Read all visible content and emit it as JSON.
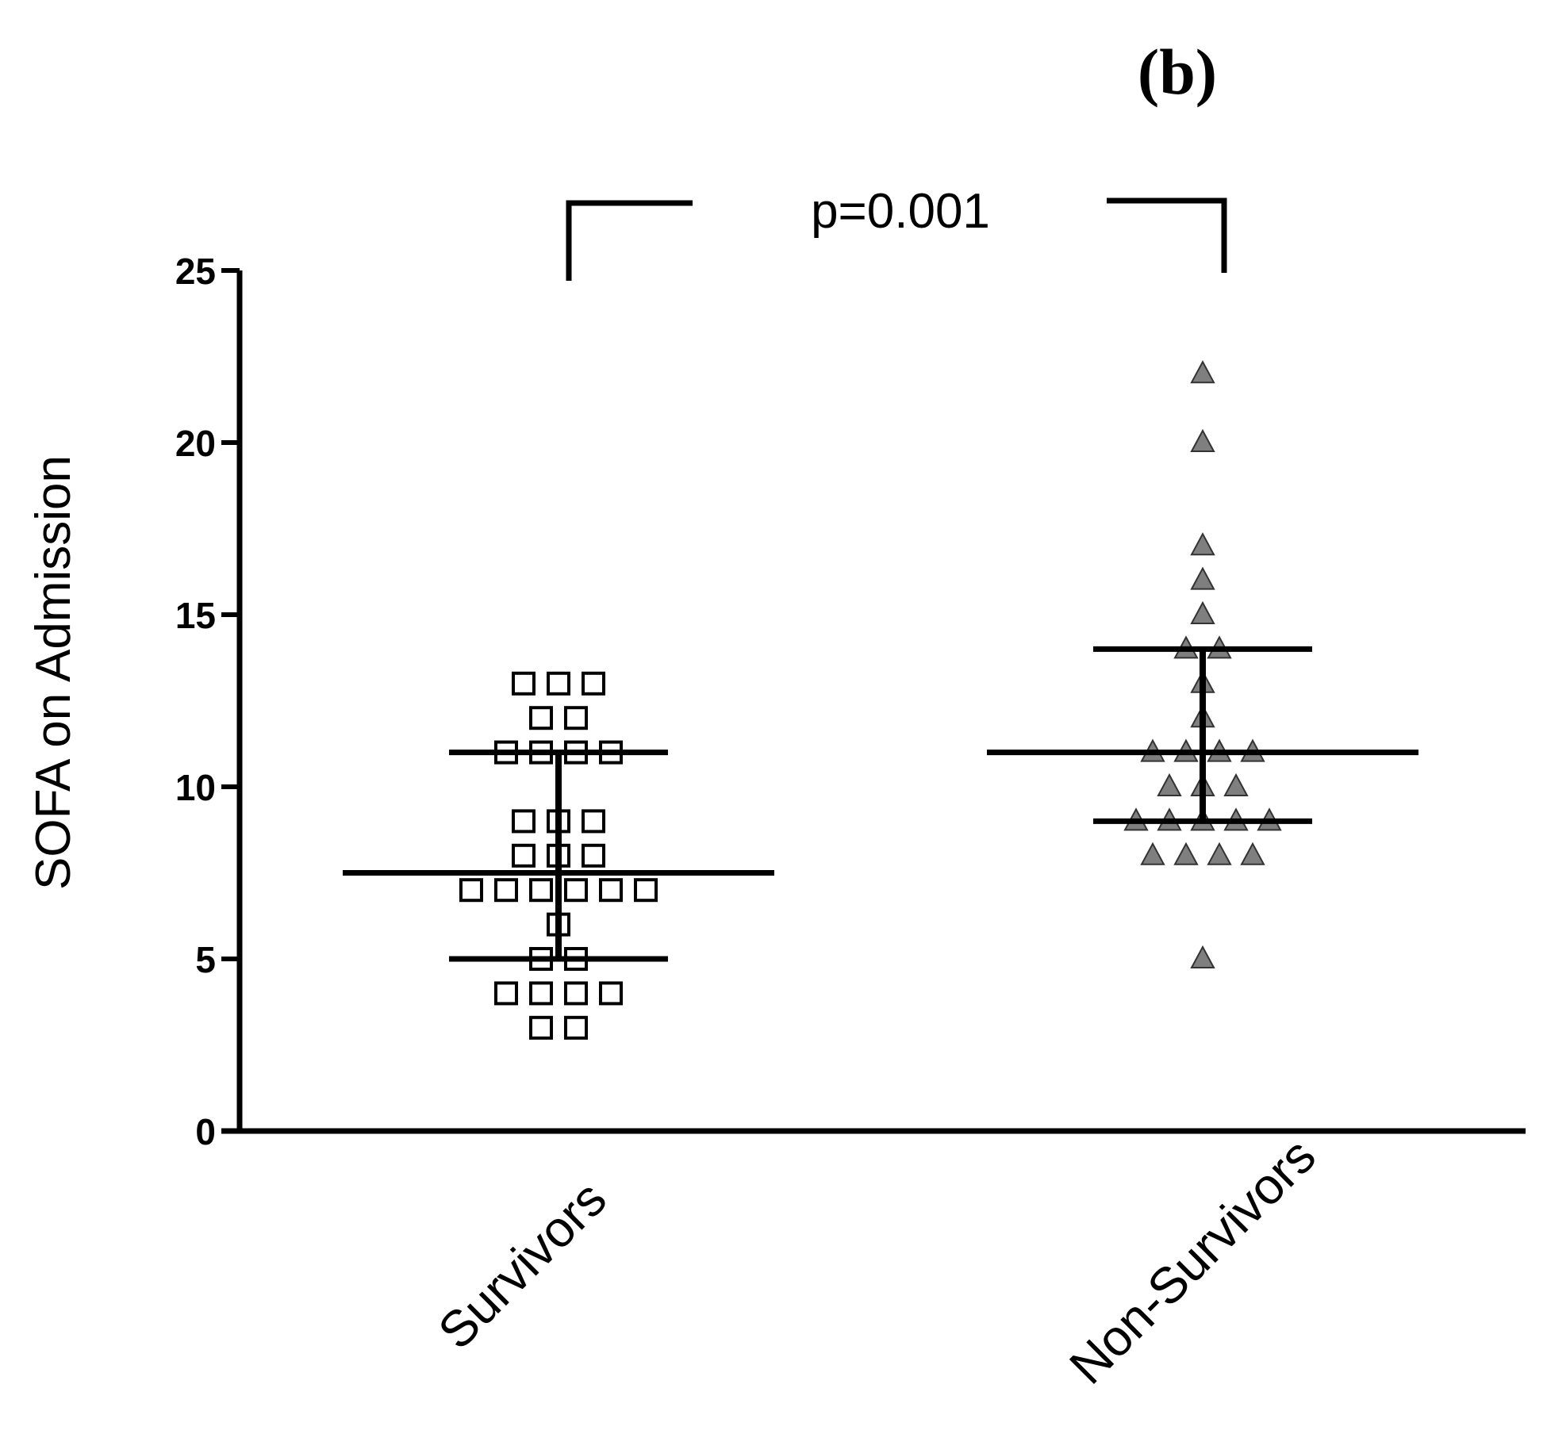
{
  "panel_label": "(b)",
  "annotation": {
    "text": "p=0.001"
  },
  "chart_data": {
    "type": "scatter",
    "subtype": "dot-plot-with-median-and-iqr",
    "title": "",
    "xlabel": "",
    "ylabel": "SOFA on Admission",
    "ylim": [
      0,
      25
    ],
    "yticks": [
      0,
      5,
      10,
      15,
      20,
      25
    ],
    "grid": false,
    "legend": "none",
    "categories": [
      "Survivors",
      "Non-Survivors"
    ],
    "series": [
      {
        "name": "Survivors",
        "marker": "open-square",
        "color": "#000000",
        "median": 7.5,
        "q1": 5,
        "q3": 11,
        "rows": [
          {
            "y": 13,
            "n": 3
          },
          {
            "y": 12,
            "n": 2
          },
          {
            "y": 11,
            "n": 4
          },
          {
            "y": 9,
            "n": 3
          },
          {
            "y": 8,
            "n": 3
          },
          {
            "y": 7,
            "n": 6
          },
          {
            "y": 6,
            "n": 1
          },
          {
            "y": 5,
            "n": 2
          },
          {
            "y": 4,
            "n": 4
          },
          {
            "y": 3,
            "n": 2
          }
        ]
      },
      {
        "name": "Non-Survivors",
        "marker": "filled-triangle",
        "color": "#7f7f7f",
        "median": 11,
        "q1": 9,
        "q3": 14,
        "rows": [
          {
            "y": 22,
            "n": 1
          },
          {
            "y": 20,
            "n": 1
          },
          {
            "y": 17,
            "n": 1
          },
          {
            "y": 16,
            "n": 1
          },
          {
            "y": 15,
            "n": 1
          },
          {
            "y": 14,
            "n": 2
          },
          {
            "y": 13,
            "n": 1
          },
          {
            "y": 12,
            "n": 1
          },
          {
            "y": 11,
            "n": 4
          },
          {
            "y": 10,
            "n": 3
          },
          {
            "y": 9,
            "n": 5
          },
          {
            "y": 8,
            "n": 4
          },
          {
            "y": 5,
            "n": 1
          }
        ]
      }
    ],
    "comparison": {
      "between": [
        "Survivors",
        "Non-Survivors"
      ],
      "label": "p=0.001"
    }
  }
}
